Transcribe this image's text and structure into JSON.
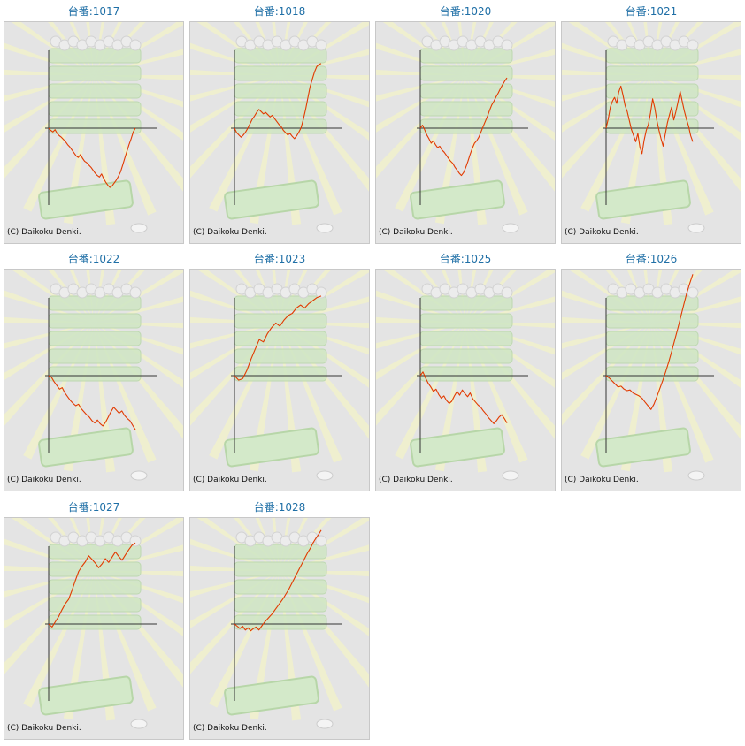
{
  "copyright": "(C) Daikoku Denki.",
  "line_color": "#e23a00",
  "axis_color": "#333333",
  "machines": [
    {
      "label": "台番:1017",
      "trend": [
        0,
        -3,
        -5,
        -2,
        -7,
        -10,
        -12,
        -15,
        -18,
        -22,
        -25,
        -29,
        -33,
        -37,
        -39,
        -35,
        -40,
        -44,
        -46,
        -49,
        -52,
        -56,
        -60,
        -63,
        -65,
        -61,
        -67,
        -72,
        -76,
        -79,
        -77,
        -73,
        -69,
        -64,
        -58,
        -49,
        -40,
        -31,
        -22,
        -14,
        -5,
        0
      ]
    },
    {
      "label": "台番:1018",
      "trend": [
        0,
        -6,
        -9,
        -12,
        -9,
        -5,
        0,
        6,
        12,
        16,
        21,
        25,
        22,
        19,
        21,
        18,
        15,
        17,
        13,
        9,
        5,
        2,
        -3,
        -6,
        -9,
        -7,
        -11,
        -14,
        -10,
        -5,
        1,
        12,
        25,
        40,
        55,
        65,
        75,
        82,
        85,
        86
      ]
    },
    {
      "label": "台番:1020",
      "trend": [
        0,
        4,
        -2,
        -9,
        -14,
        -20,
        -17,
        -22,
        -26,
        -24,
        -29,
        -32,
        -36,
        -40,
        -44,
        -47,
        -52,
        -56,
        -60,
        -63,
        -59,
        -52,
        -44,
        -35,
        -27,
        -20,
        -17,
        -12,
        -5,
        2,
        9,
        16,
        24,
        31,
        36,
        42,
        47,
        53,
        58,
        63,
        67
      ]
    },
    {
      "label": "台番:1021",
      "trend": [
        0,
        12,
        28,
        36,
        41,
        33,
        48,
        56,
        44,
        30,
        22,
        10,
        -2,
        -10,
        -18,
        -7,
        -25,
        -34,
        -16,
        -3,
        5,
        20,
        39,
        27,
        10,
        -3,
        -14,
        -24,
        -8,
        7,
        18,
        28,
        11,
        22,
        35,
        49,
        36,
        23,
        12,
        3,
        -10,
        -18
      ]
    },
    {
      "label": "台番:1022",
      "trend": [
        0,
        -2,
        -8,
        -13,
        -18,
        -16,
        -23,
        -28,
        -33,
        -37,
        -40,
        -38,
        -44,
        -48,
        -52,
        -55,
        -60,
        -63,
        -59,
        -64,
        -67,
        -62,
        -55,
        -48,
        -42,
        -46,
        -50,
        -47,
        -53,
        -57,
        -60,
        -66,
        -72
      ]
    },
    {
      "label": "台番:1023",
      "trend": [
        0,
        -6,
        -4,
        7,
        22,
        35,
        48,
        45,
        56,
        64,
        70,
        66,
        74,
        80,
        83,
        90,
        94,
        90,
        96,
        100,
        104,
        106
      ]
    },
    {
      "label": "台番:1025",
      "trend": [
        0,
        5,
        -3,
        -10,
        -15,
        -21,
        -18,
        -25,
        -30,
        -27,
        -33,
        -37,
        -34,
        -27,
        -21,
        -26,
        -19,
        -24,
        -28,
        -23,
        -31,
        -35,
        -39,
        -42,
        -47,
        -51,
        -56,
        -60,
        -64,
        -60,
        -55,
        -52,
        -57,
        -63
      ]
    },
    {
      "label": "台番:1026",
      "trend": [
        0,
        -3,
        -7,
        -11,
        -15,
        -14,
        -18,
        -20,
        -19,
        -23,
        -25,
        -27,
        -30,
        -35,
        -40,
        -45,
        -38,
        -28,
        -17,
        -6,
        6,
        19,
        33,
        48,
        63,
        79,
        95,
        110,
        123,
        135
      ]
    },
    {
      "label": "台番:1027",
      "trend": [
        0,
        -4,
        3,
        10,
        19,
        27,
        33,
        45,
        58,
        70,
        77,
        83,
        91,
        86,
        81,
        75,
        80,
        87,
        82,
        89,
        96,
        90,
        85,
        92,
        99,
        105,
        108
      ]
    },
    {
      "label": "台番:1028",
      "trend": [
        0,
        -3,
        -6,
        -3,
        -8,
        -5,
        -9,
        -6,
        -4,
        -8,
        -3,
        2,
        6,
        10,
        14,
        19,
        24,
        29,
        34,
        40,
        46,
        53,
        60,
        67,
        74,
        81,
        88,
        95,
        101,
        108,
        114,
        119,
        125
      ]
    }
  ]
}
